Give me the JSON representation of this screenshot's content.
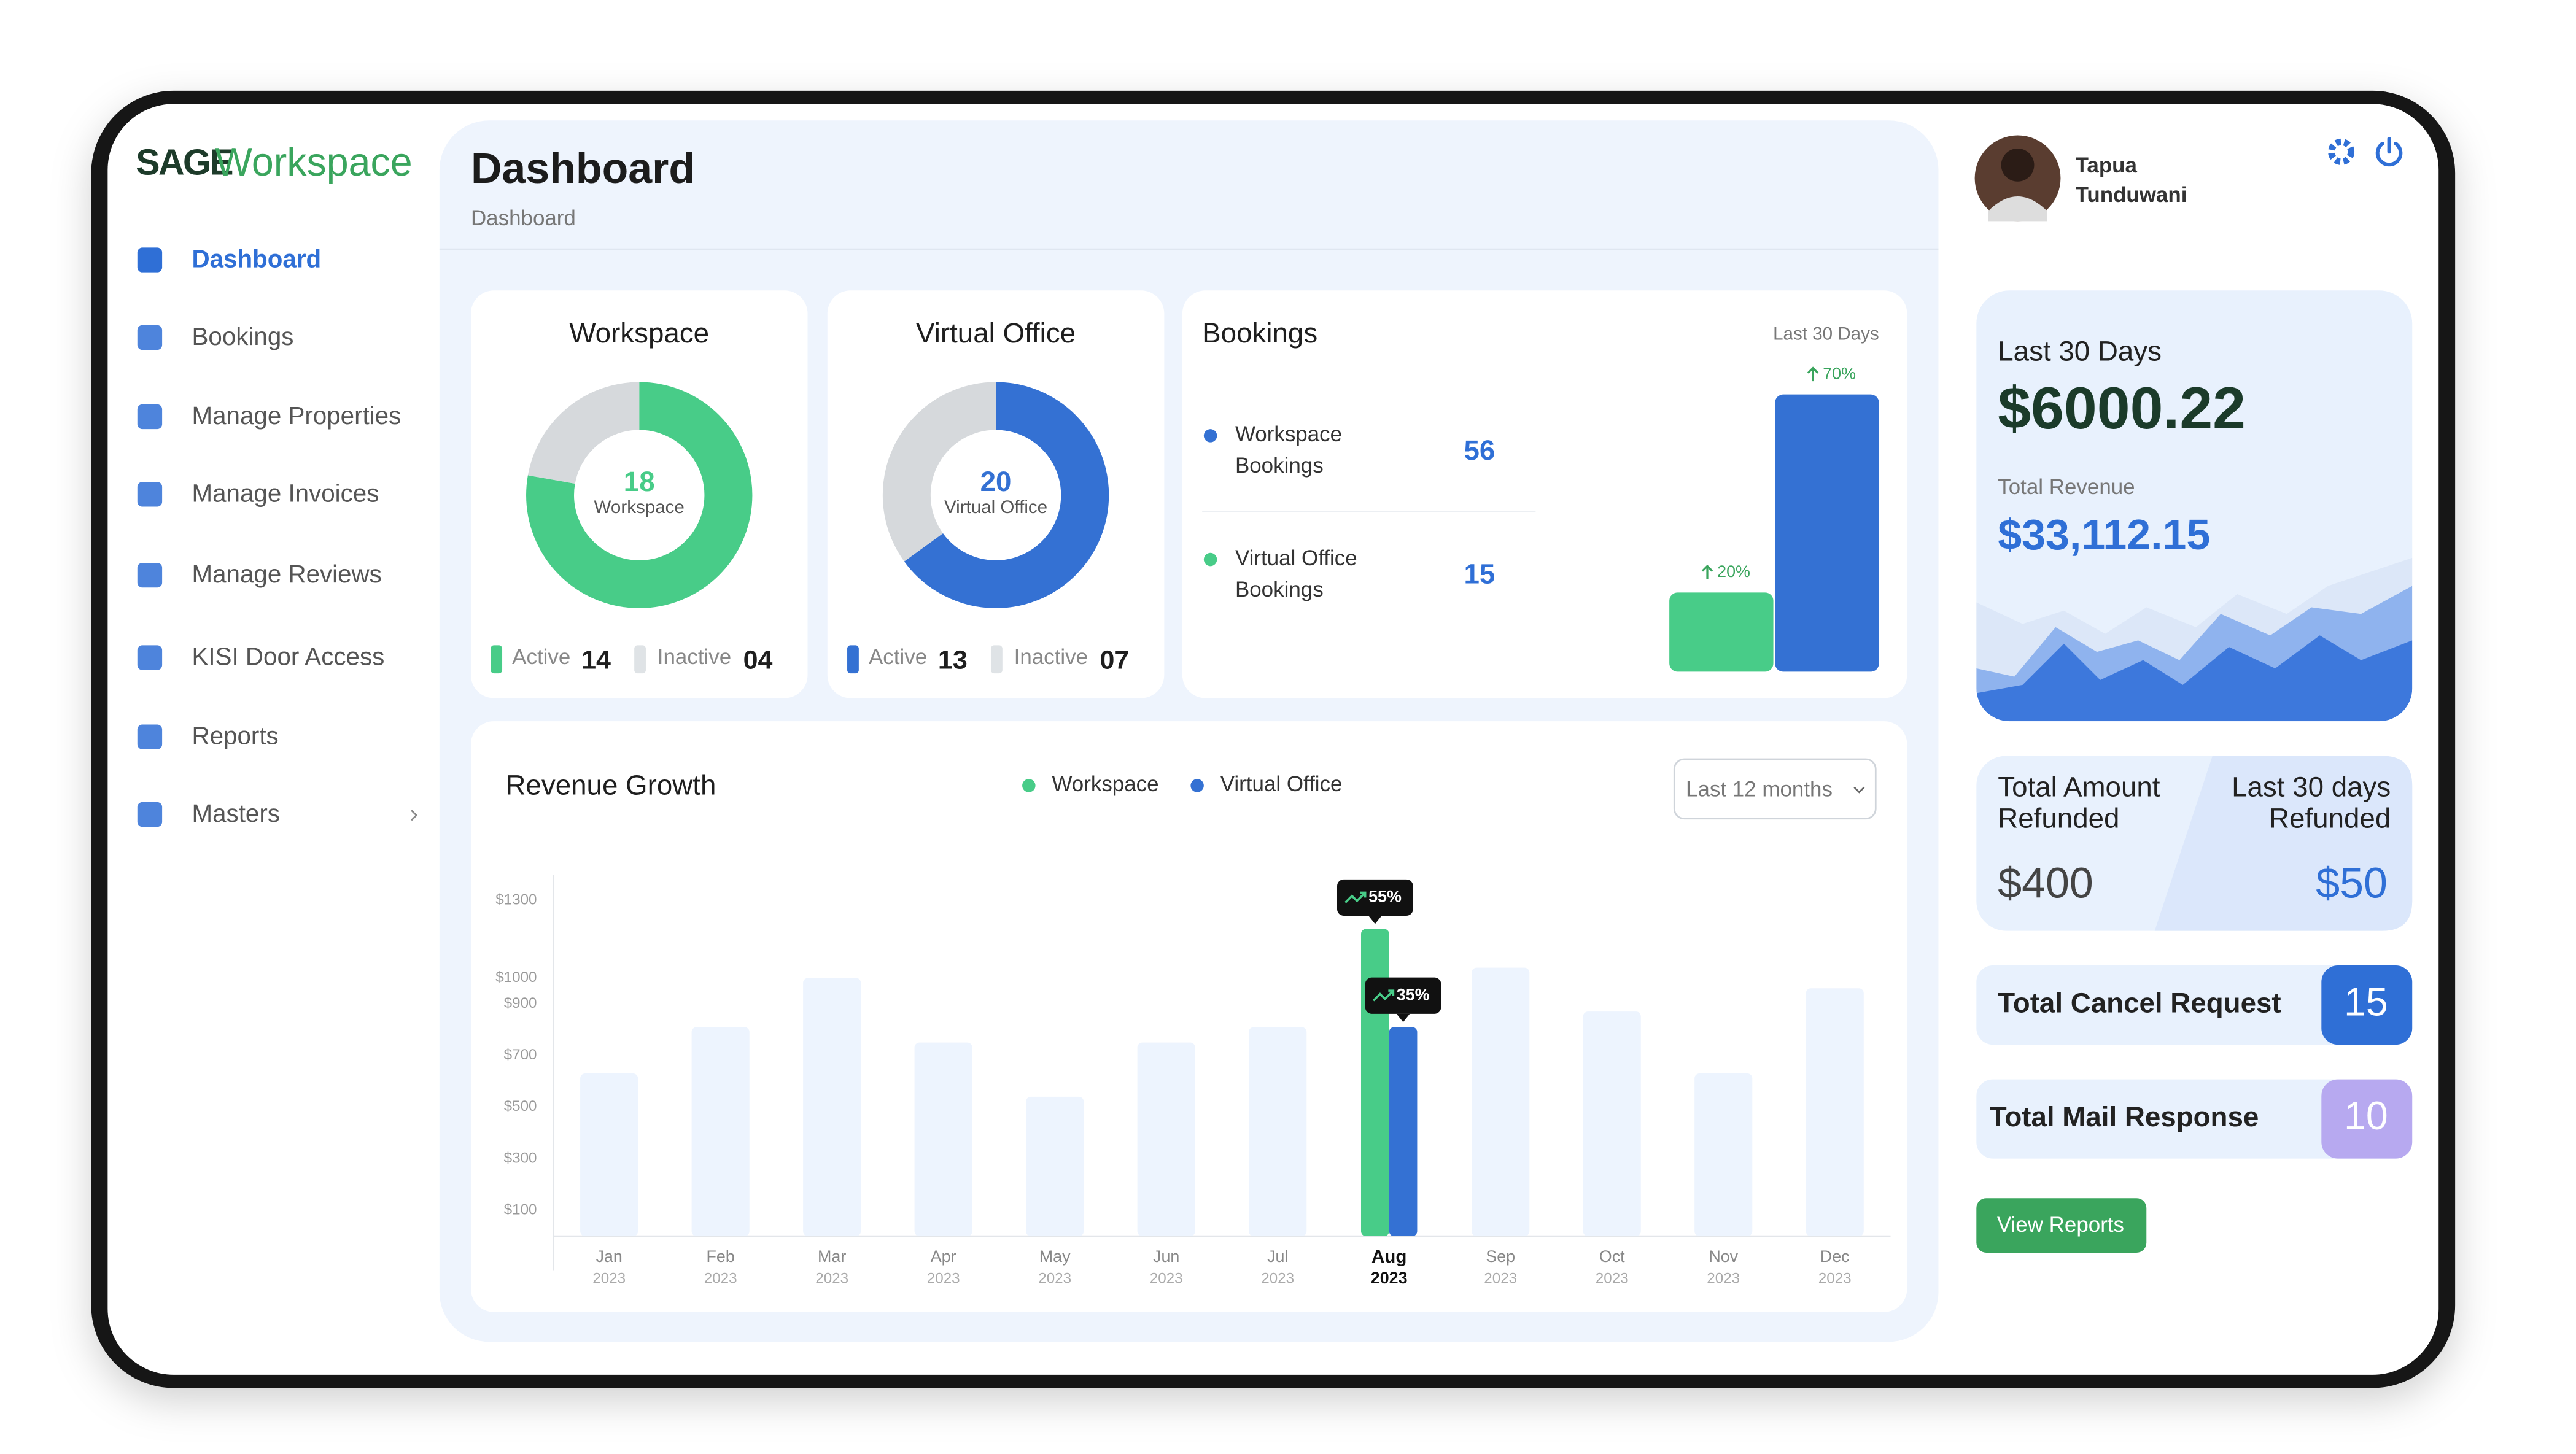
{
  "sidebar": {
    "logo": {
      "brand": "SAGE",
      "product": "Workspace"
    },
    "nav": [
      {
        "label": "Dashboard"
      },
      {
        "label": "Bookings"
      },
      {
        "label": "Manage Properties"
      },
      {
        "label": "Manage Invoices"
      },
      {
        "label": "Manage Reviews"
      },
      {
        "label": "KISI Door Access"
      },
      {
        "label": "Reports"
      },
      {
        "label": "Masters"
      }
    ]
  },
  "header": {
    "title": "Dashboard",
    "breadcrumb": "Dashboard"
  },
  "workspace_card": {
    "title": "Workspace",
    "total": 18,
    "total_label": "Workspace",
    "color": "#48cc88",
    "active_label": "Active",
    "active": 14,
    "inactive_label": "Inactive",
    "inactive": {
      "value": 4,
      "label": "04"
    }
  },
  "virtual_office_card": {
    "title": "Virtual Office",
    "total": 20,
    "total_label": "Virtual Office",
    "color": "#3471d3",
    "active_label": "Active",
    "active": 13,
    "inactive_label": "Inactive",
    "inactive": {
      "value": 7,
      "label": "07"
    }
  },
  "bookings_card": {
    "title": "Bookings",
    "period": "Last 30 Days",
    "items": [
      {
        "label": [
          "Workspace",
          "Bookings"
        ],
        "count": 56,
        "color": "#3471d3",
        "change": {
          "value": 70,
          "label": "70%"
        }
      },
      {
        "label": [
          "Virtual Office",
          "Bookings"
        ],
        "count": 15,
        "color": "#48cc88",
        "change": {
          "value": 20,
          "label": "20%"
        }
      }
    ]
  },
  "chart_data": {
    "type": "bar",
    "title": "Revenue Growth",
    "range_selector": "Last 12 months",
    "categories": [
      "Jan",
      "Feb",
      "Mar",
      "Apr",
      "May",
      "Jun",
      "Jul",
      "Aug",
      "Sep",
      "Oct",
      "Nov",
      "Dec"
    ],
    "years": [
      "2023",
      "2023",
      "2023",
      "2023",
      "2023",
      "2023",
      "2023",
      "2023",
      "2023",
      "2023",
      "2023",
      "2023"
    ],
    "values": [
      630,
      810,
      1000,
      750,
      540,
      750,
      810,
      null,
      1040,
      870,
      630,
      960
    ],
    "color": "#edf4fe",
    "ylim": [
      0,
      1400
    ],
    "yticks": [
      {
        "value": 1300,
        "label": "$1300"
      },
      {
        "value": 1000,
        "label": "$1000"
      },
      {
        "value": 900,
        "label": "$900"
      },
      {
        "value": 700,
        "label": "$700"
      },
      {
        "value": 500,
        "label": "$500"
      },
      {
        "value": 300,
        "label": "$300"
      },
      {
        "value": 100,
        "label": "$100"
      }
    ],
    "series": [
      {
        "name": "Workspace",
        "color": "#48cc88",
        "badge": "55%",
        "values": [
          null,
          null,
          null,
          null,
          null,
          null,
          null,
          1190,
          null,
          null,
          null,
          null
        ]
      },
      {
        "name": "Virtual Office",
        "color": "#3471d3",
        "badge": "35%",
        "values": [
          null,
          null,
          null,
          null,
          null,
          null,
          null,
          810,
          null,
          null,
          null,
          null
        ]
      }
    ]
  },
  "user": {
    "name": [
      "Tapua",
      "Tunduwani"
    ]
  },
  "revenue_card": {
    "period": "Last 30 Days",
    "amount": "$6000.22",
    "total_label": "Total Revenue",
    "total": "$33,112.15"
  },
  "refund_card": {
    "total_label": [
      "Total Amount",
      "Refunded"
    ],
    "total": "$400",
    "recent_label": [
      "Last 30 days",
      "Refunded"
    ],
    "recent": "$50"
  },
  "cancel_card": {
    "label": "Total Cancel Request",
    "count": 15
  },
  "mail_card": {
    "label": "Total Mail Response",
    "count": 10
  },
  "button": {
    "label": "View Reports"
  }
}
